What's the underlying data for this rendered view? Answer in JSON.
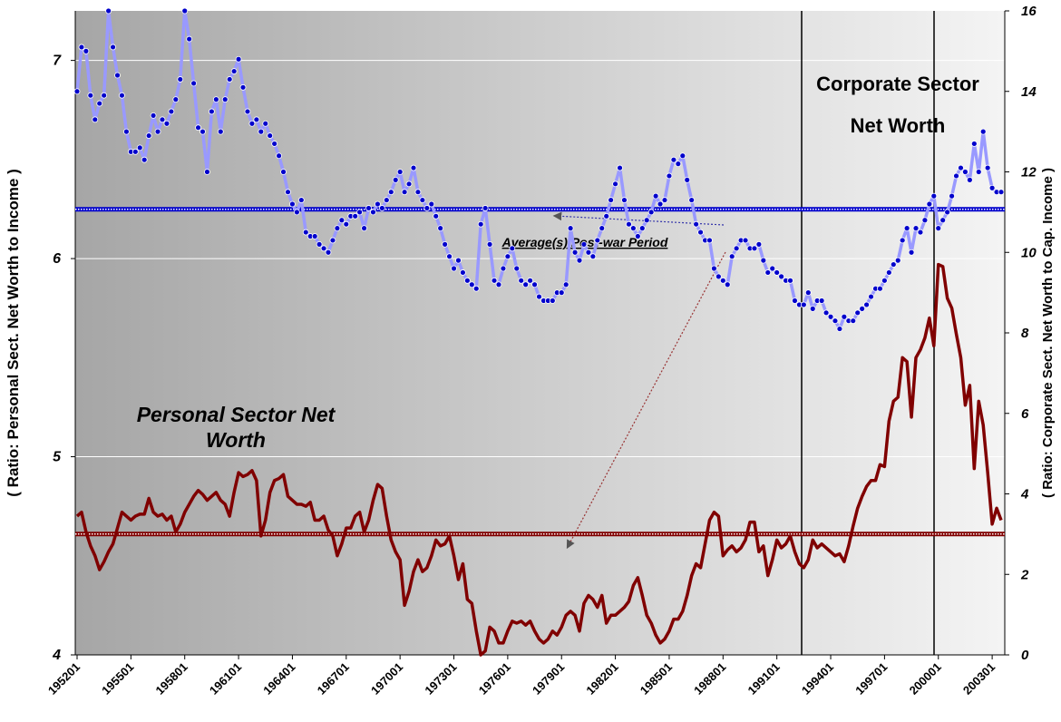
{
  "chart_data": {
    "type": "line",
    "y_label": "( Ratio: Personal Sect. Net Worth to Income )",
    "y2_label": "( Ratio: Corporate Sect. Net Worth to Cap. Income )",
    "annotation": "Average(s) Post-war Period",
    "categories": [
      "195201",
      null,
      null,
      null,
      null,
      null,
      null,
      null,
      null,
      null,
      null,
      null,
      "195501",
      null,
      null,
      null,
      null,
      null,
      null,
      null,
      null,
      null,
      null,
      null,
      "195801",
      null,
      null,
      null,
      null,
      null,
      null,
      null,
      null,
      null,
      null,
      null,
      "196101",
      null,
      null,
      null,
      null,
      null,
      null,
      null,
      null,
      null,
      null,
      null,
      "196401",
      null,
      null,
      null,
      null,
      null,
      null,
      null,
      null,
      null,
      null,
      null,
      "196701",
      null,
      null,
      null,
      null,
      null,
      null,
      null,
      null,
      null,
      null,
      null,
      "197001",
      null,
      null,
      null,
      null,
      null,
      null,
      null,
      null,
      null,
      null,
      null,
      "197301",
      null,
      null,
      null,
      null,
      null,
      null,
      null,
      null,
      null,
      null,
      null,
      "197601",
      null,
      null,
      null,
      null,
      null,
      null,
      null,
      null,
      null,
      null,
      null,
      "197901",
      null,
      null,
      null,
      null,
      null,
      null,
      null,
      null,
      null,
      null,
      null,
      "198201",
      null,
      null,
      null,
      null,
      null,
      null,
      null,
      null,
      null,
      null,
      null,
      "198501",
      null,
      null,
      null,
      null,
      null,
      null,
      null,
      null,
      null,
      null,
      null,
      "198801",
      null,
      null,
      null,
      null,
      null,
      null,
      null,
      null,
      null,
      null,
      null,
      "199101",
      null,
      null,
      null,
      null,
      null,
      null,
      null,
      null,
      null,
      null,
      null,
      "199401",
      null,
      null,
      null,
      null,
      null,
      null,
      null,
      null,
      null,
      null,
      null,
      "199701",
      null,
      null,
      null,
      null,
      null,
      null,
      null,
      null,
      null,
      null,
      null,
      "200001",
      null,
      null,
      null,
      null,
      null,
      null,
      null,
      null,
      null,
      null,
      null,
      "200301",
      null,
      null
    ],
    "ylim": [
      4,
      7.25
    ],
    "yticks": [
      4,
      5,
      6,
      7
    ],
    "y2lim": [
      0,
      16
    ],
    "y2ticks": [
      0,
      2,
      4,
      6,
      8,
      10,
      12,
      14,
      16
    ],
    "grid": true,
    "series": [
      {
        "name": "Personal Sector Net Worth",
        "color": "#800000",
        "average": 4.61,
        "values": [
          4.7,
          4.72,
          4.62,
          4.55,
          4.5,
          4.43,
          4.47,
          4.52,
          4.56,
          4.64,
          4.72,
          4.7,
          4.68,
          4.7,
          4.71,
          4.71,
          4.79,
          4.72,
          4.7,
          4.71,
          4.68,
          4.7,
          4.62,
          4.66,
          4.72,
          4.76,
          4.8,
          4.83,
          4.81,
          4.78,
          4.8,
          4.82,
          4.78,
          4.76,
          4.7,
          4.82,
          4.92,
          4.9,
          4.91,
          4.93,
          4.88,
          4.6,
          4.68,
          4.82,
          4.88,
          4.89,
          4.91,
          4.8,
          4.78,
          4.76,
          4.76,
          4.75,
          4.77,
          4.68,
          4.68,
          4.7,
          4.63,
          4.6,
          4.5,
          4.56,
          4.64,
          4.64,
          4.7,
          4.72,
          4.62,
          4.68,
          4.78,
          4.86,
          4.84,
          4.7,
          4.58,
          4.52,
          4.48,
          4.25,
          4.32,
          4.42,
          4.48,
          4.42,
          4.44,
          4.5,
          4.58,
          4.55,
          4.56,
          4.6,
          4.5,
          4.38,
          4.46,
          4.28,
          4.26,
          4.12,
          4.0,
          4.02,
          4.14,
          4.12,
          4.06,
          4.06,
          4.12,
          4.17,
          4.16,
          4.17,
          4.15,
          4.17,
          4.12,
          4.08,
          4.06,
          4.08,
          4.12,
          4.1,
          4.14,
          4.2,
          4.22,
          4.2,
          4.12,
          4.26,
          4.3,
          4.28,
          4.24,
          4.3,
          4.16,
          4.2,
          4.2,
          4.22,
          4.24,
          4.27,
          4.35,
          4.39,
          4.3,
          4.2,
          4.16,
          4.1,
          4.06,
          4.08,
          4.12,
          4.18,
          4.18,
          4.22,
          4.3,
          4.4,
          4.46,
          4.44,
          4.56,
          4.68,
          4.72,
          4.7,
          4.5,
          4.53,
          4.55,
          4.52,
          4.54,
          4.58,
          4.67,
          4.67,
          4.52,
          4.55,
          4.4,
          4.48,
          4.58,
          4.54,
          4.56,
          4.6,
          4.52,
          4.46,
          4.44,
          4.48,
          4.58,
          4.54,
          4.56,
          4.54,
          4.52,
          4.5,
          4.51,
          4.47,
          4.55,
          4.65,
          4.74,
          4.8,
          4.85,
          4.88,
          4.88,
          4.96,
          4.95,
          5.18,
          5.28,
          5.3,
          5.5,
          5.48,
          5.2,
          5.5,
          5.54,
          5.6,
          5.7,
          5.56,
          5.97,
          5.96,
          5.8,
          5.75,
          5.62,
          5.5,
          5.26,
          5.36,
          4.94,
          5.28,
          5.16,
          4.92,
          4.66,
          4.74,
          4.68
        ]
      },
      {
        "name": "Corporate Sector Net Worth",
        "color": "#9999ff",
        "marker_color": "#0000cc",
        "axis": "y2",
        "average": 11.07,
        "values": [
          14.0,
          15.1,
          15.0,
          13.9,
          13.3,
          13.7,
          13.9,
          16.0,
          15.1,
          14.4,
          13.9,
          13.0,
          12.5,
          12.5,
          12.6,
          12.3,
          12.9,
          13.4,
          13.0,
          13.3,
          13.2,
          13.5,
          13.8,
          14.3,
          16.0,
          15.3,
          14.2,
          13.1,
          13.0,
          12.0,
          13.5,
          13.8,
          13.0,
          13.8,
          14.3,
          14.5,
          14.8,
          14.1,
          13.5,
          13.2,
          13.3,
          13.0,
          13.2,
          12.9,
          12.7,
          12.4,
          12.0,
          11.5,
          11.2,
          11.0,
          11.3,
          10.5,
          10.4,
          10.4,
          10.2,
          10.1,
          10.0,
          10.3,
          10.6,
          10.8,
          10.7,
          10.9,
          10.9,
          11.0,
          10.6,
          11.1,
          11.0,
          11.2,
          11.1,
          11.3,
          11.5,
          11.8,
          12.0,
          11.5,
          11.7,
          12.1,
          11.5,
          11.3,
          11.1,
          11.2,
          10.9,
          10.6,
          10.2,
          9.9,
          9.6,
          9.8,
          9.5,
          9.3,
          9.2,
          9.1,
          10.7,
          11.1,
          10.2,
          9.3,
          9.2,
          9.6,
          9.9,
          10.1,
          9.6,
          9.3,
          9.2,
          9.3,
          9.2,
          8.9,
          8.8,
          8.8,
          8.8,
          9.0,
          9.0,
          9.2,
          10.6,
          10.0,
          9.8,
          10.2,
          10.0,
          9.9,
          10.3,
          10.6,
          10.9,
          11.3,
          11.7,
          12.1,
          11.3,
          10.7,
          10.6,
          10.4,
          10.6,
          10.8,
          11.0,
          11.4,
          11.2,
          11.3,
          11.9,
          12.3,
          12.2,
          12.4,
          11.8,
          11.3,
          10.7,
          10.5,
          10.3,
          10.3,
          9.6,
          9.4,
          9.3,
          9.2,
          9.9,
          10.1,
          10.3,
          10.3,
          10.1,
          10.1,
          10.2,
          9.8,
          9.5,
          9.6,
          9.5,
          9.4,
          9.3,
          9.3,
          8.8,
          8.7,
          8.7,
          9.0,
          8.6,
          8.8,
          8.8,
          8.5,
          8.4,
          8.3,
          8.1,
          8.4,
          8.3,
          8.3,
          8.5,
          8.6,
          8.7,
          8.9,
          9.1,
          9.1,
          9.3,
          9.5,
          9.7,
          9.8,
          10.3,
          10.6,
          10.0,
          10.6,
          10.5,
          10.8,
          11.2,
          11.4,
          10.6,
          10.8,
          11.0,
          11.4,
          11.9,
          12.1,
          12.0,
          11.8,
          12.7,
          12.0,
          13.0,
          12.1,
          11.6,
          11.5,
          11.5
        ]
      }
    ]
  }
}
